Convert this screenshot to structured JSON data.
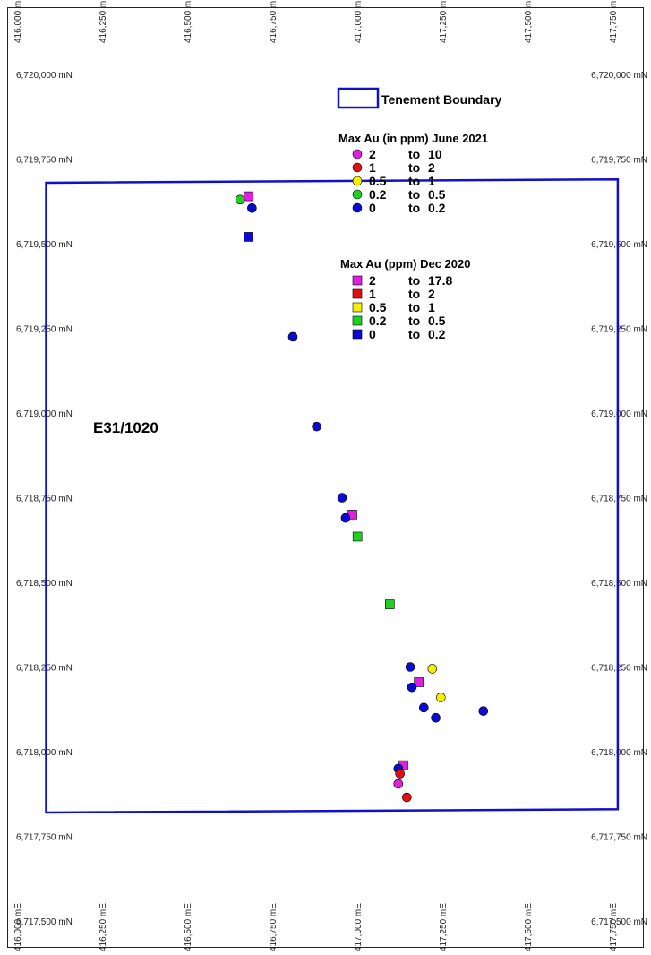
{
  "map": {
    "tenement_label": "E31/1020",
    "boundary_color": "#1010cc",
    "easting_ticks": [
      "416,000 mE",
      "416,250 mE",
      "416,500 mE",
      "416,750 mE",
      "417,000 mE",
      "417,250 mE",
      "417,500 mE",
      "417,750 mE"
    ],
    "northing_ticks": [
      "6,720,000 mN",
      "6,719,750 mN",
      "6,719,500 mN",
      "6,719,250 mN",
      "6,719,000 mN",
      "6,718,750 mN",
      "6,718,500 mN",
      "6,718,250 mN",
      "6,718,000 mN",
      "6,717,750 mN",
      "6,717,500 mN"
    ],
    "boundary_corners_mE_mN": [
      [
        416075,
        6719680
      ],
      [
        417755,
        6719690
      ],
      [
        417755,
        6717830
      ],
      [
        416075,
        6717820
      ]
    ]
  },
  "legend": {
    "boundary_label": "Tenement Boundary",
    "june_title": "Max Au (in ppm) June 2021",
    "june_items": [
      {
        "from": "2",
        "to": "to",
        "upper": "10",
        "color": "#e020e0"
      },
      {
        "from": "1",
        "to": "to",
        "upper": "2",
        "color": "#e01010"
      },
      {
        "from": "0.5",
        "to": "to",
        "upper": "1",
        "color": "#f0f000"
      },
      {
        "from": "0.2",
        "to": "to",
        "upper": "0.5",
        "color": "#20d020"
      },
      {
        "from": "0",
        "to": "to",
        "upper": "0.2",
        "color": "#0a0ad0"
      }
    ],
    "dec_title": "Max Au (ppm) Dec 2020",
    "dec_items": [
      {
        "from": "2",
        "to": "to",
        "upper": "17.8",
        "color": "#e020e0"
      },
      {
        "from": "1",
        "to": "to",
        "upper": "2",
        "color": "#e01010"
      },
      {
        "from": "0.5",
        "to": "to",
        "upper": "1",
        "color": "#f0f000"
      },
      {
        "from": "0.2",
        "to": "to",
        "upper": "0.5",
        "color": "#20d020"
      },
      {
        "from": "0",
        "to": "to",
        "upper": "0.2",
        "color": "#0a0ad0"
      }
    ]
  },
  "samples_june_2021": [
    {
      "e": 416645,
      "n": 6719630,
      "color": "#20d020"
    },
    {
      "e": 416680,
      "n": 6719605,
      "color": "#0a0ad0"
    },
    {
      "e": 416800,
      "n": 6719225,
      "color": "#0a0ad0"
    },
    {
      "e": 416870,
      "n": 6718960,
      "color": "#0a0ad0"
    },
    {
      "e": 416945,
      "n": 6718750,
      "color": "#0a0ad0"
    },
    {
      "e": 416955,
      "n": 6718690,
      "color": "#0a0ad0"
    },
    {
      "e": 417145,
      "n": 6718250,
      "color": "#0a0ad0"
    },
    {
      "e": 417150,
      "n": 6718190,
      "color": "#0a0ad0"
    },
    {
      "e": 417185,
      "n": 6718130,
      "color": "#0a0ad0"
    },
    {
      "e": 417220,
      "n": 6718100,
      "color": "#0a0ad0"
    },
    {
      "e": 417360,
      "n": 6718120,
      "color": "#0a0ad0"
    },
    {
      "e": 417210,
      "n": 6718245,
      "color": "#f0f000"
    },
    {
      "e": 417235,
      "n": 6718160,
      "color": "#f0f000"
    },
    {
      "e": 417110,
      "n": 6717950,
      "color": "#0a0ad0"
    },
    {
      "e": 417115,
      "n": 6717935,
      "color": "#e01010"
    },
    {
      "e": 417110,
      "n": 6717905,
      "color": "#e020e0"
    },
    {
      "e": 417135,
      "n": 6717865,
      "color": "#e01010"
    }
  ],
  "samples_dec_2020": [
    {
      "e": 416670,
      "n": 6719640,
      "color": "#e020e0"
    },
    {
      "e": 416670,
      "n": 6719520,
      "color": "#0a0ad0"
    },
    {
      "e": 416975,
      "n": 6718700,
      "color": "#e020e0"
    },
    {
      "e": 416990,
      "n": 6718635,
      "color": "#20d020"
    },
    {
      "e": 417085,
      "n": 6718435,
      "color": "#20d020"
    },
    {
      "e": 417170,
      "n": 6718205,
      "color": "#e020e0"
    },
    {
      "e": 417125,
      "n": 6717960,
      "color": "#e020e0"
    }
  ]
}
